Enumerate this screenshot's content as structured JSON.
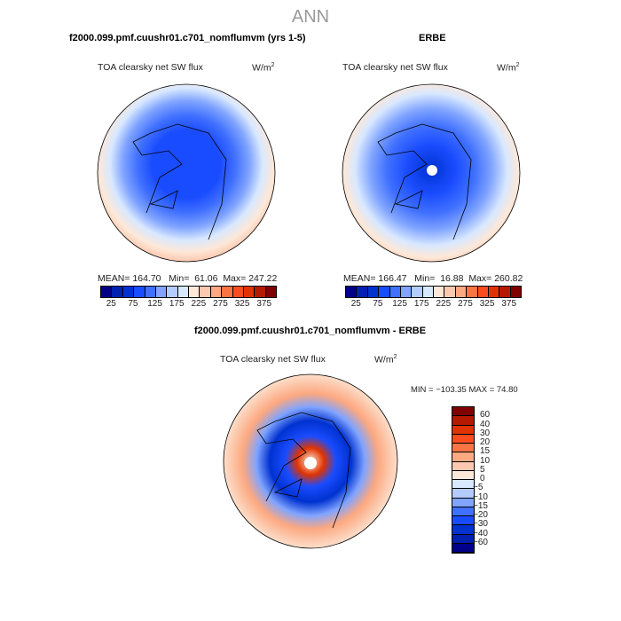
{
  "title": "ANN",
  "palette": [
    "#00008a",
    "#0020b0",
    "#0032d0",
    "#1a4cff",
    "#4070ff",
    "#80a4ff",
    "#b4ccff",
    "#d8e8ff",
    "#fde8d8",
    "#fdc8b0",
    "#fca880",
    "#fa7444",
    "#fa4c1e",
    "#e03400",
    "#b41a00",
    "#800000"
  ],
  "chart_data": [
    {
      "type": "heatmap",
      "title": "f2000.099.pmf.cuushr01.c701_nomflumvm (yrs 1-5)",
      "variable": "TOA clearsky net SW flux",
      "units": "W/m",
      "units_exp": "2",
      "stats": {
        "mean_label": "MEAN=",
        "mean": "164.70",
        "min_label": "Min=",
        "min": "61.06",
        "max_label": "Max=",
        "max": "247.22"
      },
      "levels": [
        25,
        50,
        75,
        100,
        125,
        150,
        175,
        200,
        225,
        250,
        275,
        300,
        325,
        350,
        375
      ],
      "tick_labels": [
        "25",
        "75",
        "125",
        "175",
        "225",
        "275",
        "325",
        "375"
      ]
    },
    {
      "type": "heatmap",
      "title": "ERBE",
      "variable": "TOA clearsky net SW flux",
      "units": "W/m",
      "units_exp": "2",
      "stats": {
        "mean_label": "MEAN=",
        "mean": "166.47",
        "min_label": "Min=",
        "min": "16.88",
        "max_label": "Max=",
        "max": "260.82"
      },
      "levels": [
        25,
        50,
        75,
        100,
        125,
        150,
        175,
        200,
        225,
        250,
        275,
        300,
        325,
        350,
        375
      ],
      "tick_labels": [
        "25",
        "75",
        "125",
        "175",
        "225",
        "275",
        "325",
        "375"
      ]
    },
    {
      "type": "heatmap",
      "title": "f2000.099.pmf.cuushr01.c701_nomflumvm - ERBE",
      "variable": "TOA clearsky net SW flux",
      "units": "W/m",
      "units_exp": "2",
      "stats_text": "MIN = −103.35 MAX =  74.80",
      "levels": [
        -60,
        -40,
        -30,
        -20,
        -15,
        -10,
        -5,
        0,
        5,
        10,
        15,
        20,
        30,
        40,
        60
      ],
      "tick_labels": [
        "60",
        "40",
        "30",
        "20",
        "15",
        "10",
        "5",
        "0",
        "−5",
        "−10",
        "−15",
        "−20",
        "−30",
        "−40",
        "−60"
      ]
    }
  ]
}
